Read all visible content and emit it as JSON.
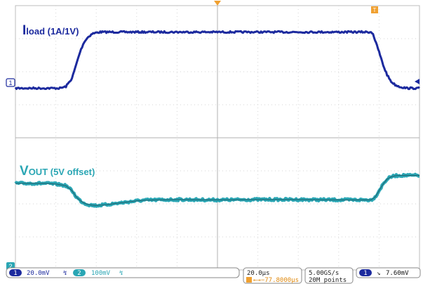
{
  "chart_data": {
    "type": "line",
    "x_unit": "µs",
    "x_range": [
      -100,
      100
    ],
    "y_range": [
      -4,
      4
    ],
    "grid": true,
    "series": [
      {
        "name": "Iload (1A/1V)",
        "color": "#1c2a9e",
        "x": [
          -100,
          -78,
          -75,
          -72,
          -70,
          -68,
          -66,
          -64,
          -62,
          -60,
          -58,
          -56,
          -54,
          -20,
          0,
          20,
          40,
          60,
          76,
          77,
          78,
          80,
          82,
          84,
          86,
          88,
          90,
          92,
          94,
          100
        ],
        "y": [
          1.5,
          1.5,
          1.55,
          1.8,
          2.2,
          2.6,
          2.9,
          3.05,
          3.15,
          3.18,
          3.2,
          3.2,
          3.2,
          3.2,
          3.2,
          3.2,
          3.2,
          3.2,
          3.2,
          3.15,
          2.95,
          2.6,
          2.2,
          1.9,
          1.7,
          1.6,
          1.55,
          1.52,
          1.5,
          1.5
        ]
      },
      {
        "name": "VOUT (5V offset)",
        "color": "#2aa6b4",
        "x": [
          -100,
          -85,
          -80,
          -75,
          -72,
          -70,
          -68,
          -66,
          -64,
          -62,
          -60,
          -56,
          -52,
          -48,
          -44,
          -40,
          -36,
          -30,
          -20,
          0,
          20,
          40,
          60,
          76,
          78,
          80,
          82,
          84,
          86,
          88,
          90,
          100
        ],
        "y": [
          -1.38,
          -1.38,
          -1.4,
          -1.45,
          -1.6,
          -1.78,
          -1.9,
          -1.98,
          -2.02,
          -2.04,
          -2.05,
          -2.03,
          -2.0,
          -1.97,
          -1.94,
          -1.91,
          -1.89,
          -1.88,
          -1.87,
          -1.88,
          -1.87,
          -1.87,
          -1.88,
          -1.88,
          -1.8,
          -1.6,
          -1.4,
          -1.25,
          -1.18,
          -1.15,
          -1.14,
          -1.14
        ]
      }
    ],
    "channel_labels": {
      "ch1_main": "I",
      "ch1_sub": "load (1A/1V)",
      "ch2_main": "V",
      "ch2_sub": "OUT (5V offset)"
    },
    "markers": {
      "ch1_ground": "1",
      "ch2_ground": "2",
      "trigger_pos": "T"
    },
    "status_bar": {
      "ch1_badge": "1",
      "ch1_scale": "20.0mV",
      "ch1_coupling": "↯",
      "ch2_badge": "2",
      "ch2_scale": "100mV",
      "ch2_coupling": "↯",
      "timebase": "20.0µs",
      "trigger_delay": "←→−77.8000µs",
      "sample_rate": "5.00GS/s",
      "record_length": "20M points",
      "trigger_badge": "1",
      "trigger_slope": "↘",
      "trigger_level": "7.60mV"
    }
  }
}
